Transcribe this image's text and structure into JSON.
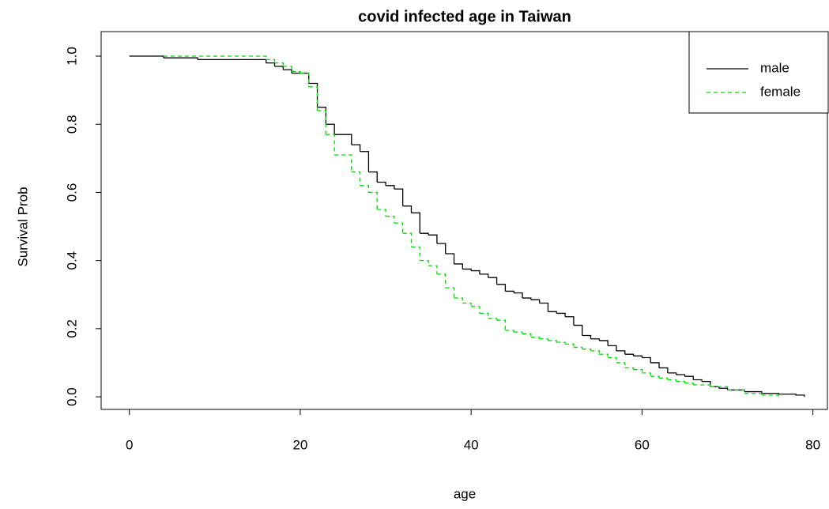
{
  "chart_data": {
    "type": "line",
    "step": true,
    "title": "covid infected age in Taiwan",
    "x_label": "age",
    "y_label": "Survival Prob",
    "xlim": [
      -3.3,
      81.7
    ],
    "ylim": [
      -0.037,
      1.072
    ],
    "xticks": [
      0,
      20,
      40,
      60,
      80
    ],
    "yticks": [
      {
        "value": 0,
        "label": "0.0"
      },
      {
        "value": 0.2,
        "label": "0.2"
      },
      {
        "value": 0.4,
        "label": "0.4"
      },
      {
        "value": 0.6,
        "label": "0.6"
      },
      {
        "value": 0.8,
        "label": "0.8"
      },
      {
        "value": 1,
        "label": "1.0"
      }
    ],
    "legend": "top-right",
    "series": [
      {
        "name": "male",
        "color": "#000000",
        "dashed": false,
        "x": [
          0,
          4,
          8,
          16,
          17,
          18,
          19,
          21,
          22,
          23,
          24,
          26,
          27,
          28,
          29,
          30,
          31,
          32,
          33,
          34,
          35,
          36,
          37,
          38,
          39,
          40,
          41,
          42,
          43,
          44,
          45,
          46,
          47,
          48,
          49,
          50,
          51,
          52,
          53,
          54,
          55,
          56,
          57,
          58,
          59,
          60,
          61,
          62,
          63,
          64,
          65,
          66,
          67,
          68,
          69,
          70,
          72,
          74,
          76,
          78,
          79
        ],
        "values": [
          1.0,
          0.995,
          0.99,
          0.98,
          0.97,
          0.96,
          0.95,
          0.92,
          0.85,
          0.8,
          0.77,
          0.74,
          0.72,
          0.66,
          0.63,
          0.62,
          0.61,
          0.56,
          0.54,
          0.48,
          0.475,
          0.45,
          0.42,
          0.39,
          0.375,
          0.37,
          0.36,
          0.35,
          0.33,
          0.31,
          0.305,
          0.29,
          0.285,
          0.275,
          0.25,
          0.245,
          0.235,
          0.21,
          0.18,
          0.17,
          0.165,
          0.15,
          0.135,
          0.125,
          0.12,
          0.115,
          0.1,
          0.085,
          0.07,
          0.065,
          0.06,
          0.05,
          0.045,
          0.03,
          0.025,
          0.02,
          0.015,
          0.01,
          0.008,
          0.005,
          0.0
        ]
      },
      {
        "name": "female",
        "color": "#00dd00",
        "dashed": true,
        "x": [
          4,
          16,
          17,
          18,
          19,
          20,
          21,
          22,
          23,
          24,
          26,
          27,
          28,
          29,
          30,
          31,
          32,
          33,
          34,
          35,
          36,
          37,
          38,
          39,
          40,
          41,
          42,
          43,
          44,
          45,
          46,
          47,
          48,
          49,
          50,
          51,
          52,
          53,
          54,
          55,
          56,
          57,
          58,
          59,
          60,
          61,
          62,
          63,
          64,
          65,
          66,
          68,
          70,
          72,
          74,
          76
        ],
        "values": [
          1.0,
          0.99,
          0.98,
          0.97,
          0.955,
          0.95,
          0.91,
          0.84,
          0.77,
          0.71,
          0.66,
          0.62,
          0.6,
          0.55,
          0.53,
          0.51,
          0.48,
          0.44,
          0.4,
          0.385,
          0.36,
          0.32,
          0.29,
          0.275,
          0.265,
          0.245,
          0.23,
          0.225,
          0.195,
          0.19,
          0.185,
          0.175,
          0.17,
          0.165,
          0.16,
          0.155,
          0.145,
          0.14,
          0.135,
          0.125,
          0.115,
          0.1,
          0.085,
          0.08,
          0.07,
          0.06,
          0.055,
          0.05,
          0.045,
          0.04,
          0.035,
          0.03,
          0.02,
          0.01,
          0.005,
          0.0
        ]
      }
    ]
  }
}
